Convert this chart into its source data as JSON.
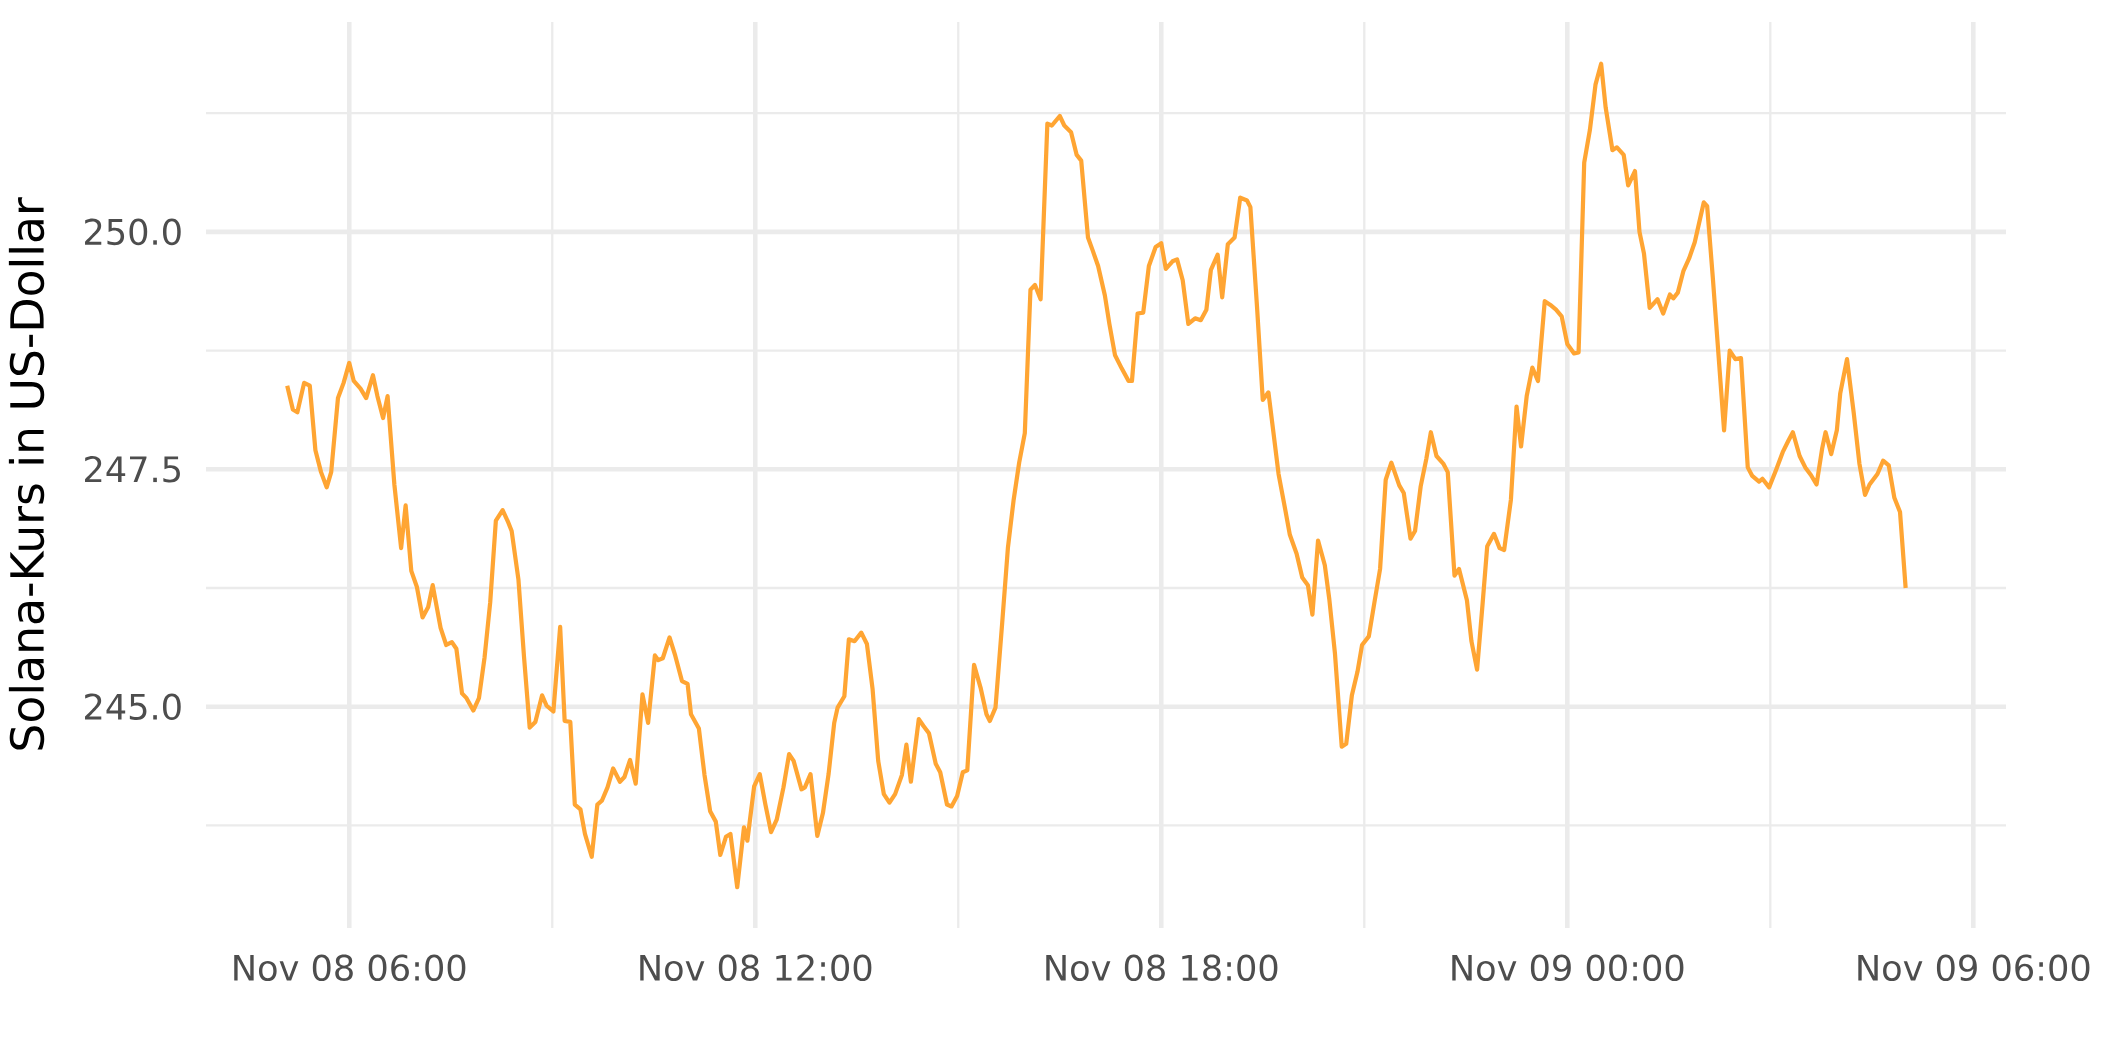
{
  "chart_data": {
    "type": "line",
    "ylabel": "Solana-Kurs in US-Dollar",
    "color": "#ffa533",
    "grid": true,
    "xlim": [
      "--11-08T03:53",
      "--11-09T06:29"
    ],
    "ylim": [
      242.67,
      252.21
    ],
    "xticks": [
      {
        "value": "--11-08T06:00",
        "label": "Nov 08 06:00"
      },
      {
        "value": "--11-08T12:00",
        "label": "Nov 08 12:00"
      },
      {
        "value": "--11-08T18:00",
        "label": "Nov 08 18:00"
      },
      {
        "value": "--11-09T00:00",
        "label": "Nov 09 00:00"
      },
      {
        "value": "--11-09T06:00",
        "label": "Nov 09 06:00"
      },
      {
        "value": "--11-08T09:00",
        "label": null
      },
      {
        "value": "--11-08T15:00",
        "label": null
      },
      {
        "value": "--11-08T21:00",
        "label": null
      },
      {
        "value": "--11-09T03:00",
        "label": null
      }
    ],
    "yticks": [
      {
        "value": 245,
        "label": "245.0"
      },
      {
        "value": 247.5,
        "label": "247.5"
      },
      {
        "value": 250,
        "label": "250.0"
      },
      {
        "value": 243.75,
        "label": null
      },
      {
        "value": 246.25,
        "label": null
      },
      {
        "value": 248.75,
        "label": null
      },
      {
        "value": 251.25,
        "label": null
      }
    ],
    "x": [
      "--11-08T05:05",
      "--11-08T05:10",
      "--11-08T05:14",
      "--11-08T05:20",
      "--11-08T05:25",
      "--11-08T05:30",
      "--11-08T05:35",
      "--11-08T05:40",
      "--11-08T05:44",
      "--11-08T05:50",
      "--11-08T05:55",
      "--11-08T06:00",
      "--11-08T06:04",
      "--11-08T06:10",
      "--11-08T06:15",
      "--11-08T06:21",
      "--11-08T06:25",
      "--11-08T06:30",
      "--11-08T06:34",
      "--11-08T06:40",
      "--11-08T06:46",
      "--11-08T06:50",
      "--11-08T06:55",
      "--11-08T07:00",
      "--11-08T07:05",
      "--11-08T07:10",
      "--11-08T07:14",
      "--11-08T07:21",
      "--11-08T07:26",
      "--11-08T07:31",
      "--11-08T07:35",
      "--11-08T07:40",
      "--11-08T07:44",
      "--11-08T07:50",
      "--11-08T07:55",
      "--11-08T08:00",
      "--11-08T08:05",
      "--11-08T08:10",
      "--11-08T08:16",
      "--11-08T08:21",
      "--11-08T08:24",
      "--11-08T08:30",
      "--11-08T08:35",
      "--11-08T08:40",
      "--11-08T08:45",
      "--11-08T08:51",
      "--11-08T08:55",
      "--11-08T09:01",
      "--11-08T09:07",
      "--11-08T09:11",
      "--11-08T09:16",
      "--11-08T09:20",
      "--11-08T09:25",
      "--11-08T09:29",
      "--11-08T09:35",
      "--11-08T09:40",
      "--11-08T09:44",
      "--11-08T09:49",
      "--11-08T09:54",
      "--11-08T10:00",
      "--11-08T10:04",
      "--11-08T10:09",
      "--11-08T10:14",
      "--11-08T10:20",
      "--11-08T10:25",
      "--11-08T10:31",
      "--11-08T10:34",
      "--11-08T10:38",
      "--11-08T10:44",
      "--11-08T10:49",
      "--11-08T10:55",
      "--11-08T11:00",
      "--11-08T11:03",
      "--11-08T11:10",
      "--11-08T11:15",
      "--11-08T11:20",
      "--11-08T11:25",
      "--11-08T11:29",
      "--11-08T11:34",
      "--11-08T11:38",
      "--11-08T11:44",
      "--11-08T11:50",
      "--11-08T11:53",
      "--11-08T11:59",
      "--11-08T12:04",
      "--11-08T12:09",
      "--11-08T12:14",
      "--11-08T12:19",
      "--11-08T12:25",
      "--11-08T12:30",
      "--11-08T12:34",
      "--11-08T12:41",
      "--11-08T12:44",
      "--11-08T12:49",
      "--11-08T12:55",
      "--11-08T13:00",
      "--11-08T13:05",
      "--11-08T13:10",
      "--11-08T13:13",
      "--11-08T13:19",
      "--11-08T13:23",
      "--11-08T13:28",
      "--11-08T13:34",
      "--11-08T13:39",
      "--11-08T13:44",
      "--11-08T13:49",
      "--11-08T13:54",
      "--11-08T13:59",
      "--11-08T14:04",
      "--11-08T14:10",
      "--11-08T14:14",
      "--11-08T14:18",
      "--11-08T14:25",
      "--11-08T14:29",
      "--11-08T14:34",
      "--11-08T14:40",
      "--11-08T14:44",
      "--11-08T14:50",
      "--11-08T14:54",
      "--11-08T14:59",
      "--11-08T15:04",
      "--11-08T15:08",
      "--11-08T15:14",
      "--11-08T15:20",
      "--11-08T15:25",
      "--11-08T15:28",
      "--11-08T15:33",
      "--11-08T15:39",
      "--11-08T15:44",
      "--11-08T15:49",
      "--11-08T15:54",
      "--11-08T15:59",
      "--11-08T16:04",
      "--11-08T16:08",
      "--11-08T16:13",
      "--11-08T16:19",
      "--11-08T16:23",
      "--11-08T16:30",
      "--11-08T16:34",
      "--11-08T16:40",
      "--11-08T16:45",
      "--11-08T16:49",
      "--11-08T16:55",
      "--11-08T16:59",
      "--11-08T17:04",
      "--11-08T17:10",
      "--11-08T17:14",
      "--11-08T17:19",
      "--11-08T17:25",
      "--11-08T17:31",
      "--11-08T17:34",
      "--11-08T17:39",
      "--11-08T17:44",
      "--11-08T17:49",
      "--11-08T17:55",
      "--11-08T18:00",
      "--11-08T18:04",
      "--11-08T18:10",
      "--11-08T18:14",
      "--11-08T18:19",
      "--11-08T18:24",
      "--11-08T18:30",
      "--11-08T18:35",
      "--11-08T18:40",
      "--11-08T18:44",
      "--11-08T18:50",
      "--11-08T18:54",
      "--11-08T18:59",
      "--11-08T19:05",
      "--11-08T19:10",
      "--11-08T19:16",
      "--11-08T19:19",
      "--11-08T19:25",
      "--11-08T19:30",
      "--11-08T19:35",
      "--11-08T19:39",
      "--11-08T19:44",
      "--11-08T19:50",
      "--11-08T19:54",
      "--11-08T20:00",
      "--11-08T20:05",
      "--11-08T20:10",
      "--11-08T20:14",
      "--11-08T20:19",
      "--11-08T20:25",
      "--11-08T20:29",
      "--11-08T20:34",
      "--11-08T20:40",
      "--11-08T20:44",
      "--11-08T20:49",
      "--11-08T20:54",
      "--11-08T20:58",
      "--11-08T21:04",
      "--11-08T21:09",
      "--11-08T21:14",
      "--11-08T21:19",
      "--11-08T21:24",
      "--11-08T21:31",
      "--11-08T21:35",
      "--11-08T21:41",
      "--11-08T21:45",
      "--11-08T21:50",
      "--11-08T21:55",
      "--11-08T21:59",
      "--11-08T22:04",
      "--11-08T22:10",
      "--11-08T22:14",
      "--11-08T22:20",
      "--11-08T22:24",
      "--11-08T22:31",
      "--11-08T22:35",
      "--11-08T22:40",
      "--11-08T22:45",
      "--11-08T22:49",
      "--11-08T22:55",
      "--11-08T23:00",
      "--11-08T23:04",
      "--11-08T23:10",
      "--11-08T23:15",
      "--11-08T23:19",
      "--11-08T23:24",
      "--11-08T23:29",
      "--11-08T23:34",
      "--11-08T23:40",
      "--11-08T23:45",
      "--11-08T23:50",
      "--11-08T23:55",
      "--11-09T00:00",
      "--11-09T00:06",
      "--11-09T00:10",
      "--11-09T00:15",
      "--11-09T00:20",
      "--11-09T00:25",
      "--11-09T00:30",
      "--11-09T00:34",
      "--11-09T00:40",
      "--11-09T00:44",
      "--11-09T00:50",
      "--11-09T00:54",
      "--11-09T01:00",
      "--11-09T01:04",
      "--11-09T01:08",
      "--11-09T01:13",
      "--11-09T01:20",
      "--11-09T01:25",
      "--11-09T01:31",
      "--11-09T01:34",
      "--11-09T01:38",
      "--11-09T01:43",
      "--11-09T01:48",
      "--11-09T01:53",
      "--11-09T02:01",
      "--11-09T02:04",
      "--11-09T02:09",
      "--11-09T02:19",
      "--11-09T02:24",
      "--11-09T02:29",
      "--11-09T02:34",
      "--11-09T02:40",
      "--11-09T02:44",
      "--11-09T02:50",
      "--11-09T02:53",
      "--11-09T02:59",
      "--11-09T03:05",
      "--11-09T03:11",
      "--11-09T03:16",
      "--11-09T03:20",
      "--11-09T03:26",
      "--11-09T03:31",
      "--11-09T03:36",
      "--11-09T03:41",
      "--11-09T03:46",
      "--11-09T03:49",
      "--11-09T03:54",
      "--11-09T03:59",
      "--11-09T04:02",
      "--11-09T04:08",
      "--11-09T04:14",
      "--11-09T04:19",
      "--11-09T04:24",
      "--11-09T04:28",
      "--11-09T04:35",
      "--11-09T04:40",
      "--11-09T04:45",
      "--11-09T04:50",
      "--11-09T04:55",
      "--11-09T05:00"
    ],
    "values": [
      248.38,
      248.13,
      248.1,
      248.41,
      248.38,
      247.7,
      247.47,
      247.31,
      247.47,
      248.25,
      248.41,
      248.62,
      248.43,
      248.35,
      248.25,
      248.49,
      248.27,
      248.04,
      248.27,
      247.34,
      246.67,
      247.12,
      246.43,
      246.26,
      245.94,
      246.05,
      246.28,
      245.83,
      245.65,
      245.68,
      245.61,
      245.14,
      245.09,
      244.96,
      245.09,
      245.52,
      246.1,
      246.96,
      247.07,
      246.94,
      246.85,
      246.34,
      245.52,
      244.78,
      244.84,
      245.12,
      245.01,
      244.95,
      245.84,
      244.85,
      244.84,
      243.97,
      243.92,
      243.66,
      243.42,
      243.97,
      244.01,
      244.15,
      244.35,
      244.21,
      244.26,
      244.44,
      244.19,
      245.13,
      244.83,
      245.54,
      245.49,
      245.51,
      245.73,
      245.54,
      245.27,
      245.24,
      244.92,
      244.77,
      244.28,
      243.9,
      243.79,
      243.44,
      243.63,
      243.66,
      243.1,
      243.73,
      243.59,
      244.16,
      244.29,
      243.97,
      243.68,
      243.81,
      244.15,
      244.5,
      244.43,
      244.13,
      244.15,
      244.29,
      243.64,
      243.88,
      244.29,
      244.83,
      244.99,
      245.11,
      245.71,
      245.69,
      245.78,
      245.66,
      245.19,
      244.43,
      244.08,
      243.99,
      244.08,
      244.28,
      244.6,
      244.21,
      244.87,
      244.8,
      244.72,
      244.4,
      244.31,
      243.97,
      243.95,
      244.06,
      244.31,
      244.33,
      245.44,
      245.19,
      244.92,
      244.85,
      244.99,
      245.89,
      246.67,
      247.17,
      247.57,
      247.88,
      249.39,
      249.44,
      249.29,
      251.14,
      251.12,
      251.22,
      251.12,
      251.05,
      250.81,
      250.75,
      249.94,
      249.81,
      249.64,
      249.33,
      249.03,
      248.7,
      248.56,
      248.43,
      248.43,
      249.14,
      249.15,
      249.64,
      249.84,
      249.88,
      249.61,
      249.69,
      249.71,
      249.49,
      249.03,
      249.09,
      249.07,
      249.18,
      249.6,
      249.76,
      249.31,
      249.87,
      249.94,
      250.36,
      250.33,
      250.26,
      249.19,
      248.23,
      248.31,
      247.93,
      247.45,
      247.07,
      246.81,
      246.61,
      246.36,
      246.28,
      245.97,
      246.75,
      246.49,
      246.13,
      245.56,
      244.58,
      244.61,
      245.12,
      245.37,
      245.65,
      245.74,
      246.1,
      246.45,
      247.39,
      247.57,
      247.33,
      247.25,
      246.77,
      246.85,
      247.32,
      247.61,
      247.89,
      247.64,
      247.56,
      247.47,
      246.38,
      246.45,
      246.12,
      245.69,
      245.39,
      246.1,
      246.69,
      246.82,
      246.67,
      246.65,
      247.18,
      248.16,
      247.74,
      248.27,
      248.57,
      248.43,
      249.27,
      249.23,
      249.18,
      249.11,
      248.82,
      248.72,
      248.73,
      250.73,
      251.07,
      251.55,
      251.77,
      251.31,
      250.86,
      250.89,
      250.81,
      250.49,
      250.64,
      250.0,
      249.77,
      249.2,
      249.29,
      249.14,
      249.34,
      249.3,
      249.36,
      249.59,
      249.72,
      249.89,
      250.31,
      250.27,
      249.52,
      247.91,
      248.75,
      248.66,
      248.67,
      247.52,
      247.43,
      247.37,
      247.4,
      247.31,
      247.49,
      247.68,
      247.8,
      247.89,
      247.64,
      247.52,
      247.44,
      247.34,
      247.72,
      247.89,
      247.66,
      247.91,
      248.3,
      248.66,
      248.09,
      247.56,
      247.23,
      247.34,
      247.45,
      247.59,
      247.54,
      247.2,
      247.05,
      246.25
    ]
  }
}
